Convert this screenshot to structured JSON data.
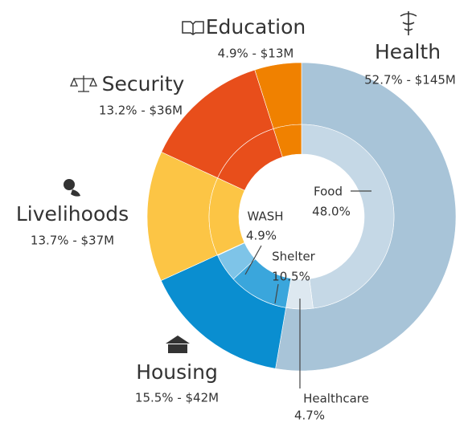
{
  "chart_data": {
    "type": "donut",
    "outer": {
      "categories": [
        "Health",
        "Housing",
        "Livelihoods",
        "Security",
        "Education"
      ],
      "values": [
        52.7,
        15.5,
        13.7,
        13.2,
        4.9
      ],
      "amounts": [
        145,
        42,
        37,
        36,
        13
      ],
      "value_labels": [
        "52.7% - $145M",
        "15.5% - $42M",
        "13.7% - $37M",
        "13.2% - $36M",
        "4.9% - $13M"
      ],
      "colors": [
        "#a8c4d8",
        "#0a8ed0",
        "#fcc545",
        "#e84e1b",
        "#f08100"
      ]
    },
    "inner": {
      "categories": [
        "Food",
        "Healthcare",
        "Shelter",
        "WASH"
      ],
      "values": [
        48.0,
        4.7,
        10.5,
        4.9
      ],
      "value_labels": [
        "48.0%",
        "4.7%",
        "10.5%",
        "4.9%"
      ],
      "colors": [
        "#c5d8e6",
        "#dde8f0",
        "#3aa6dc",
        "#7ec4e8"
      ]
    }
  }
}
